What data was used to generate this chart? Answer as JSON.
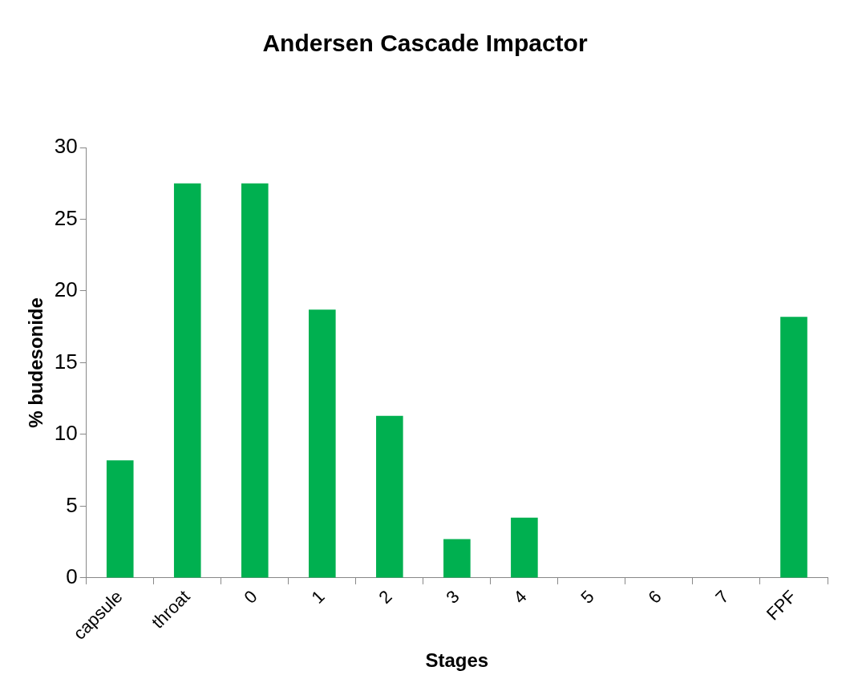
{
  "chart_data": {
    "type": "bar",
    "title": "Andersen Cascade Impactor",
    "xlabel": "Stages",
    "ylabel": "% budesonide",
    "categories": [
      "capsule",
      "throat",
      "0",
      "1",
      "2",
      "3",
      "4",
      "5",
      "6",
      "7",
      "FPF"
    ],
    "values": [
      8.2,
      27.5,
      27.5,
      18.7,
      11.3,
      2.7,
      4.2,
      0,
      0,
      0,
      18.2
    ],
    "color": "#00b050",
    "ylim": [
      0,
      30
    ],
    "yticks": [
      0,
      5,
      10,
      15,
      20,
      25,
      30
    ],
    "grid": false,
    "legend": false
  }
}
